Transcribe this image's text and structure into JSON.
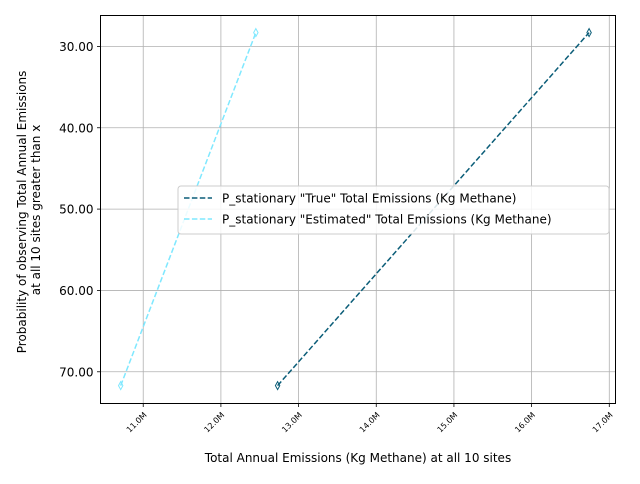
{
  "chart_data": {
    "type": "line",
    "xlabel": "Total Annual Emissions (Kg Methane) at all 10 sites",
    "ylabel_lines": [
      "Probability of observing Total Annual Emissions",
      "at all 10 sites greater than x"
    ],
    "x_ticks": [
      {
        "value": 11.0,
        "label": "11.0M"
      },
      {
        "value": 12.0,
        "label": "12.0M"
      },
      {
        "value": 13.0,
        "label": "13.0M"
      },
      {
        "value": 14.0,
        "label": "14.0M"
      },
      {
        "value": 15.0,
        "label": "15.0M"
      },
      {
        "value": 16.0,
        "label": "16.0M"
      },
      {
        "value": 17.0,
        "label": "17.0M"
      }
    ],
    "y_ticks": [
      {
        "value": 30,
        "label": "30.00"
      },
      {
        "value": 40,
        "label": "40.00"
      },
      {
        "value": 50,
        "label": "50.00"
      },
      {
        "value": 60,
        "label": "60.00"
      },
      {
        "value": 70,
        "label": "70.00"
      }
    ],
    "xlim": [
      10.45,
      17.08
    ],
    "ylim": [
      73.9,
      26.2
    ],
    "y_inverted": true,
    "grid": true,
    "legend_position": "center-right",
    "series": [
      {
        "name": "P_stationary \"True\" Total Emissions (Kg Methane)",
        "color": "#0b5d78",
        "linestyle": "dashed",
        "marker": "thin-diamond",
        "points": [
          [
            12.73,
            71.7
          ],
          [
            16.74,
            28.3
          ]
        ]
      },
      {
        "name": "P_stationary \"Estimated\" Total Emissions (Kg Methane)",
        "color": "#7fe8ff",
        "linestyle": "dashed",
        "marker": "thin-diamond",
        "points": [
          [
            10.71,
            71.7
          ],
          [
            12.45,
            28.3
          ]
        ]
      }
    ]
  }
}
